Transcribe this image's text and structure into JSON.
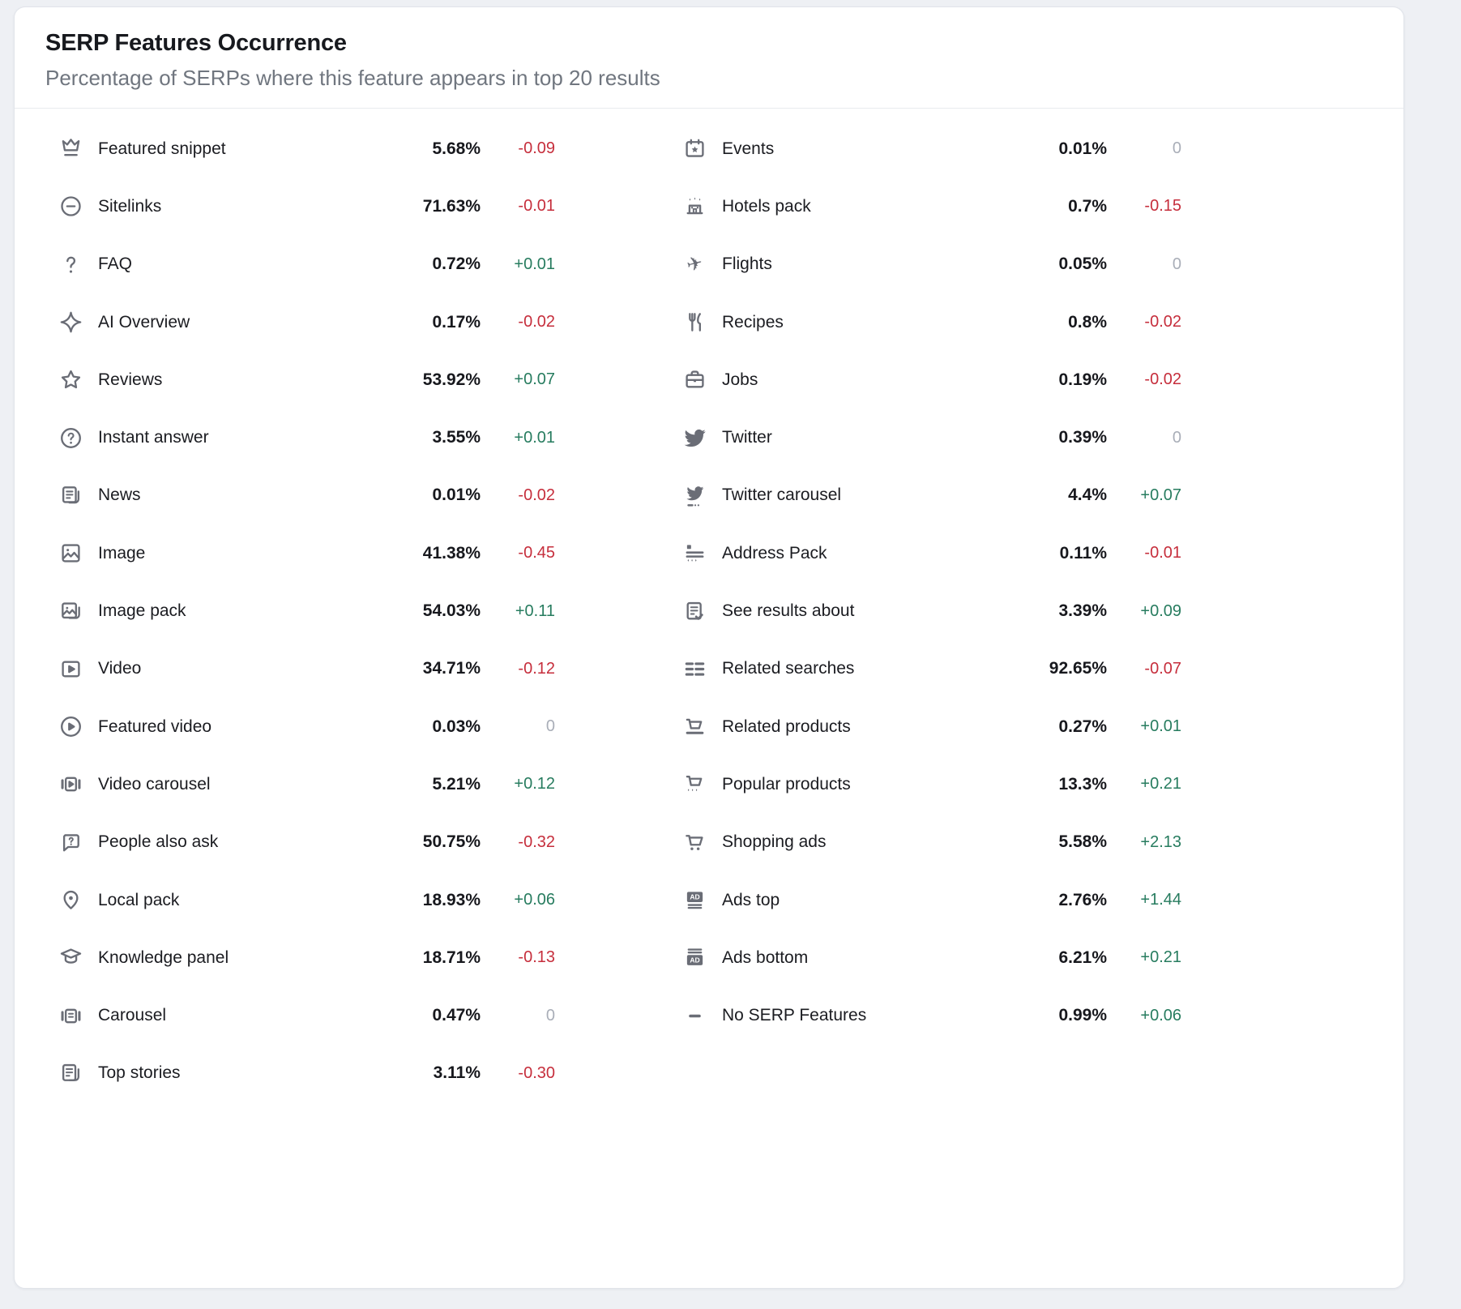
{
  "card": {
    "title": "SERP Features Occurrence",
    "subtitle": "Percentage of SERPs where this feature appears in top 20 results"
  },
  "colors": {
    "positive": "#277c5f",
    "negative": "#c62e3c",
    "neutral": "#a9aeb8",
    "icon": "#6a6d76"
  },
  "columns": [
    {
      "rows": [
        {
          "label": "Featured snippet",
          "icon": "crown-icon",
          "value": "5.68%",
          "change": "-0.09",
          "trend": "down"
        },
        {
          "label": "Sitelinks",
          "icon": "sitelinks-icon",
          "value": "71.63%",
          "change": "-0.01",
          "trend": "down"
        },
        {
          "label": "FAQ",
          "icon": "question-mark-icon",
          "value": "0.72%",
          "change": "+0.01",
          "trend": "up"
        },
        {
          "label": "AI Overview",
          "icon": "ai-sparkle-icon",
          "value": "0.17%",
          "change": "-0.02",
          "trend": "down"
        },
        {
          "label": "Reviews",
          "icon": "star-icon",
          "value": "53.92%",
          "change": "+0.07",
          "trend": "up"
        },
        {
          "label": "Instant answer",
          "icon": "question-circle-icon",
          "value": "3.55%",
          "change": "+0.01",
          "trend": "up"
        },
        {
          "label": "News",
          "icon": "news-icon",
          "value": "0.01%",
          "change": "-0.02",
          "trend": "down"
        },
        {
          "label": "Image",
          "icon": "image-icon",
          "value": "41.38%",
          "change": "-0.45",
          "trend": "down"
        },
        {
          "label": "Image pack",
          "icon": "image-pack-icon",
          "value": "54.03%",
          "change": "+0.11",
          "trend": "up"
        },
        {
          "label": "Video",
          "icon": "video-icon",
          "value": "34.71%",
          "change": "-0.12",
          "trend": "down"
        },
        {
          "label": "Featured video",
          "icon": "featured-video-icon",
          "value": "0.03%",
          "change": "0",
          "trend": "flat"
        },
        {
          "label": "Video carousel",
          "icon": "video-carousel-icon",
          "value": "5.21%",
          "change": "+0.12",
          "trend": "up"
        },
        {
          "label": "People also ask",
          "icon": "people-also-ask-icon",
          "value": "50.75%",
          "change": "-0.32",
          "trend": "down"
        },
        {
          "label": "Local pack",
          "icon": "map-pin-icon",
          "value": "18.93%",
          "change": "+0.06",
          "trend": "up"
        },
        {
          "label": "Knowledge panel",
          "icon": "graduation-cap-icon",
          "value": "18.71%",
          "change": "-0.13",
          "trend": "down"
        },
        {
          "label": "Carousel",
          "icon": "carousel-icon",
          "value": "0.47%",
          "change": "0",
          "trend": "flat"
        },
        {
          "label": "Top stories",
          "icon": "top-stories-icon",
          "value": "3.11%",
          "change": "-0.30",
          "trend": "down"
        }
      ]
    },
    {
      "rows": [
        {
          "label": "Events",
          "icon": "calendar-star-icon",
          "value": "0.01%",
          "change": "0",
          "trend": "flat"
        },
        {
          "label": "Hotels pack",
          "icon": "hotel-icon",
          "value": "0.7%",
          "change": "-0.15",
          "trend": "down"
        },
        {
          "label": "Flights",
          "icon": "airplane-icon",
          "value": "0.05%",
          "change": "0",
          "trend": "flat"
        },
        {
          "label": "Recipes",
          "icon": "fork-knife-icon",
          "value": "0.8%",
          "change": "-0.02",
          "trend": "down"
        },
        {
          "label": "Jobs",
          "icon": "briefcase-icon",
          "value": "0.19%",
          "change": "-0.02",
          "trend": "down"
        },
        {
          "label": "Twitter",
          "icon": "twitter-bird-icon",
          "value": "0.39%",
          "change": "0",
          "trend": "flat"
        },
        {
          "label": "Twitter carousel",
          "icon": "twitter-carousel-icon",
          "value": "4.4%",
          "change": "+0.07",
          "trend": "up"
        },
        {
          "label": "Address Pack",
          "icon": "address-pack-icon",
          "value": "0.11%",
          "change": "-0.01",
          "trend": "down"
        },
        {
          "label": "See results about",
          "icon": "doc-check-icon",
          "value": "3.39%",
          "change": "+0.09",
          "trend": "up"
        },
        {
          "label": "Related searches",
          "icon": "list-lines-icon",
          "value": "92.65%",
          "change": "-0.07",
          "trend": "down"
        },
        {
          "label": "Related products",
          "icon": "cart-line-icon",
          "value": "0.27%",
          "change": "+0.01",
          "trend": "up"
        },
        {
          "label": "Popular products",
          "icon": "cart-stars-icon",
          "value": "13.3%",
          "change": "+0.21",
          "trend": "up"
        },
        {
          "label": "Shopping ads",
          "icon": "cart-wheels-icon",
          "value": "5.58%",
          "change": "+2.13",
          "trend": "up"
        },
        {
          "label": "Ads top",
          "icon": "ads-top-icon",
          "value": "2.76%",
          "change": "+1.44",
          "trend": "up"
        },
        {
          "label": "Ads bottom",
          "icon": "ads-bottom-icon",
          "value": "6.21%",
          "change": "+0.21",
          "trend": "up"
        },
        {
          "label": "No SERP Features",
          "icon": "minus-icon",
          "value": "0.99%",
          "change": "+0.06",
          "trend": "up"
        }
      ]
    }
  ]
}
